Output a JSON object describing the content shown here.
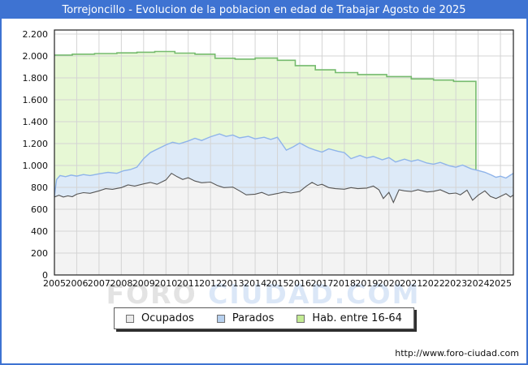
{
  "titlebar": {
    "title": "Torrejoncillo - Evolucion de la poblacion en edad de Trabajar Agosto de 2025"
  },
  "footer": {
    "url": "http://www.foro-ciudad.com"
  },
  "watermark": {
    "part1": "FORO ",
    "part2": "CIUDAD.COM"
  },
  "legend": {
    "items": [
      {
        "label": "Ocupados",
        "color": "#ebebeb",
        "border": "#707070"
      },
      {
        "label": "Parados",
        "color": "#b7d0ee",
        "border": "#707070"
      },
      {
        "label": "Hab. entre 16-64",
        "color": "#c3eb93",
        "border": "#707070"
      }
    ]
  },
  "colors": {
    "frame_border": "#3e73d2",
    "titlebar_bg": "#3e73d2",
    "titlebar_text": "#ffffff",
    "grid": "#d4d4d4",
    "plot_border": "#222222",
    "watermark_gray": "#e3e3e3",
    "watermark_blue": "#dbe7f7"
  },
  "chart_data": {
    "type": "area",
    "title": "Torrejoncillo - Evolucion de la poblacion en edad de Trabajar Agosto de 2025",
    "stacked": true,
    "grid": true,
    "legend_position": "bottom",
    "xlabel": "",
    "ylabel": "",
    "xlim": [
      2005,
      2025.58
    ],
    "ylim": [
      0,
      2200
    ],
    "x_ticks": [
      2005,
      2006,
      2007,
      2008,
      2009,
      2010,
      2011,
      2012,
      2013,
      2014,
      2015,
      2016,
      2017,
      2018,
      2019,
      2020,
      2021,
      2022,
      2023,
      2024,
      2025
    ],
    "y_ticks": [
      {
        "value": 0,
        "label": "0"
      },
      {
        "value": 200,
        "label": "200"
      },
      {
        "value": 400,
        "label": "400"
      },
      {
        "value": 600,
        "label": "600"
      },
      {
        "value": 800,
        "label": "800"
      },
      {
        "value": 1000,
        "label": "1.000"
      },
      {
        "value": 1200,
        "label": "1.200"
      },
      {
        "value": 1400,
        "label": "1.400"
      },
      {
        "value": 1600,
        "label": "1.600"
      },
      {
        "value": 1800,
        "label": "1.800"
      },
      {
        "value": 2000,
        "label": "2.000"
      },
      {
        "value": 2200,
        "label": "2.200"
      }
    ],
    "series": [
      {
        "name": "Ocupados",
        "type": "line",
        "color": "#555555",
        "fill": "#f3f3f3",
        "points": [
          [
            2005.0,
            712
          ],
          [
            2005.2,
            728
          ],
          [
            2005.4,
            712
          ],
          [
            2005.6,
            722
          ],
          [
            2005.8,
            715
          ],
          [
            2006.0,
            738
          ],
          [
            2006.3,
            752
          ],
          [
            2006.6,
            746
          ],
          [
            2007.0,
            768
          ],
          [
            2007.3,
            788
          ],
          [
            2007.6,
            782
          ],
          [
            2008.0,
            798
          ],
          [
            2008.3,
            822
          ],
          [
            2008.6,
            812
          ],
          [
            2009.0,
            832
          ],
          [
            2009.3,
            845
          ],
          [
            2009.6,
            828
          ],
          [
            2010.0,
            868
          ],
          [
            2010.25,
            928
          ],
          [
            2010.5,
            898
          ],
          [
            2010.75,
            872
          ],
          [
            2011.0,
            888
          ],
          [
            2011.3,
            858
          ],
          [
            2011.6,
            842
          ],
          [
            2012.0,
            848
          ],
          [
            2012.3,
            818
          ],
          [
            2012.6,
            798
          ],
          [
            2013.0,
            802
          ],
          [
            2013.3,
            768
          ],
          [
            2013.6,
            732
          ],
          [
            2014.0,
            738
          ],
          [
            2014.3,
            754
          ],
          [
            2014.6,
            728
          ],
          [
            2015.0,
            744
          ],
          [
            2015.3,
            758
          ],
          [
            2015.6,
            748
          ],
          [
            2016.0,
            762
          ],
          [
            2016.3,
            812
          ],
          [
            2016.55,
            845
          ],
          [
            2016.8,
            818
          ],
          [
            2017.0,
            828
          ],
          [
            2017.3,
            798
          ],
          [
            2017.6,
            788
          ],
          [
            2018.0,
            783
          ],
          [
            2018.3,
            798
          ],
          [
            2018.6,
            788
          ],
          [
            2019.0,
            793
          ],
          [
            2019.3,
            812
          ],
          [
            2019.55,
            778
          ],
          [
            2019.75,
            698
          ],
          [
            2020.0,
            755
          ],
          [
            2020.2,
            662
          ],
          [
            2020.45,
            778
          ],
          [
            2020.7,
            768
          ],
          [
            2021.0,
            762
          ],
          [
            2021.3,
            778
          ],
          [
            2021.7,
            758
          ],
          [
            2022.0,
            764
          ],
          [
            2022.3,
            778
          ],
          [
            2022.7,
            742
          ],
          [
            2023.0,
            748
          ],
          [
            2023.2,
            732
          ],
          [
            2023.5,
            775
          ],
          [
            2023.75,
            682
          ],
          [
            2024.0,
            728
          ],
          [
            2024.3,
            768
          ],
          [
            2024.55,
            718
          ],
          [
            2024.8,
            698
          ],
          [
            2025.0,
            718
          ],
          [
            2025.25,
            742
          ],
          [
            2025.45,
            712
          ],
          [
            2025.58,
            730
          ]
        ]
      },
      {
        "name": "Parados",
        "type": "line",
        "color": "#8fb4ea",
        "fill": "#ddeaf8",
        "points": [
          [
            2005.0,
            722
          ],
          [
            2005.1,
            872
          ],
          [
            2005.25,
            908
          ],
          [
            2005.5,
            898
          ],
          [
            2005.75,
            912
          ],
          [
            2006.0,
            903
          ],
          [
            2006.3,
            917
          ],
          [
            2006.6,
            908
          ],
          [
            2007.0,
            924
          ],
          [
            2007.4,
            937
          ],
          [
            2007.8,
            928
          ],
          [
            2008.1,
            952
          ],
          [
            2008.4,
            962
          ],
          [
            2008.7,
            985
          ],
          [
            2009.0,
            1062
          ],
          [
            2009.3,
            1118
          ],
          [
            2009.6,
            1148
          ],
          [
            2010.0,
            1188
          ],
          [
            2010.3,
            1212
          ],
          [
            2010.6,
            1198
          ],
          [
            2011.0,
            1224
          ],
          [
            2011.3,
            1248
          ],
          [
            2011.6,
            1228
          ],
          [
            2012.0,
            1262
          ],
          [
            2012.4,
            1288
          ],
          [
            2012.7,
            1265
          ],
          [
            2013.0,
            1278
          ],
          [
            2013.3,
            1252
          ],
          [
            2013.7,
            1266
          ],
          [
            2014.0,
            1243
          ],
          [
            2014.4,
            1258
          ],
          [
            2014.7,
            1238
          ],
          [
            2015.0,
            1258
          ],
          [
            2015.4,
            1140
          ],
          [
            2015.7,
            1170
          ],
          [
            2016.0,
            1205
          ],
          [
            2016.4,
            1162
          ],
          [
            2016.7,
            1140
          ],
          [
            2017.0,
            1122
          ],
          [
            2017.3,
            1152
          ],
          [
            2017.7,
            1130
          ],
          [
            2018.0,
            1118
          ],
          [
            2018.3,
            1062
          ],
          [
            2018.7,
            1092
          ],
          [
            2019.0,
            1068
          ],
          [
            2019.3,
            1082
          ],
          [
            2019.7,
            1052
          ],
          [
            2020.0,
            1072
          ],
          [
            2020.3,
            1032
          ],
          [
            2020.7,
            1058
          ],
          [
            2021.0,
            1038
          ],
          [
            2021.3,
            1052
          ],
          [
            2021.7,
            1022
          ],
          [
            2022.0,
            1012
          ],
          [
            2022.3,
            1028
          ],
          [
            2022.7,
            998
          ],
          [
            2023.0,
            984
          ],
          [
            2023.3,
            1004
          ],
          [
            2023.7,
            968
          ],
          [
            2024.0,
            954
          ],
          [
            2024.3,
            938
          ],
          [
            2024.6,
            912
          ],
          [
            2024.8,
            892
          ],
          [
            2025.0,
            902
          ],
          [
            2025.25,
            885
          ],
          [
            2025.45,
            912
          ],
          [
            2025.58,
            928
          ]
        ]
      },
      {
        "name": "Hab. entre 16-64",
        "type": "step",
        "color": "#76bb6e",
        "fill": "#e7f8d5",
        "end_x": 2023.9,
        "points": [
          [
            2005.0,
            2008
          ],
          [
            2005.8,
            2016
          ],
          [
            2006.8,
            2022
          ],
          [
            2007.8,
            2028
          ],
          [
            2008.7,
            2034
          ],
          [
            2009.5,
            2041
          ],
          [
            2010.4,
            2026
          ],
          [
            2011.3,
            2016
          ],
          [
            2012.2,
            1979
          ],
          [
            2013.1,
            1971
          ],
          [
            2014.0,
            1981
          ],
          [
            2015.0,
            1961
          ],
          [
            2015.8,
            1912
          ],
          [
            2016.7,
            1873
          ],
          [
            2017.6,
            1848
          ],
          [
            2018.6,
            1830
          ],
          [
            2019.9,
            1812
          ],
          [
            2021.0,
            1790
          ],
          [
            2022.0,
            1780
          ],
          [
            2022.9,
            1768
          ],
          [
            2023.9,
            1768
          ]
        ]
      }
    ]
  }
}
